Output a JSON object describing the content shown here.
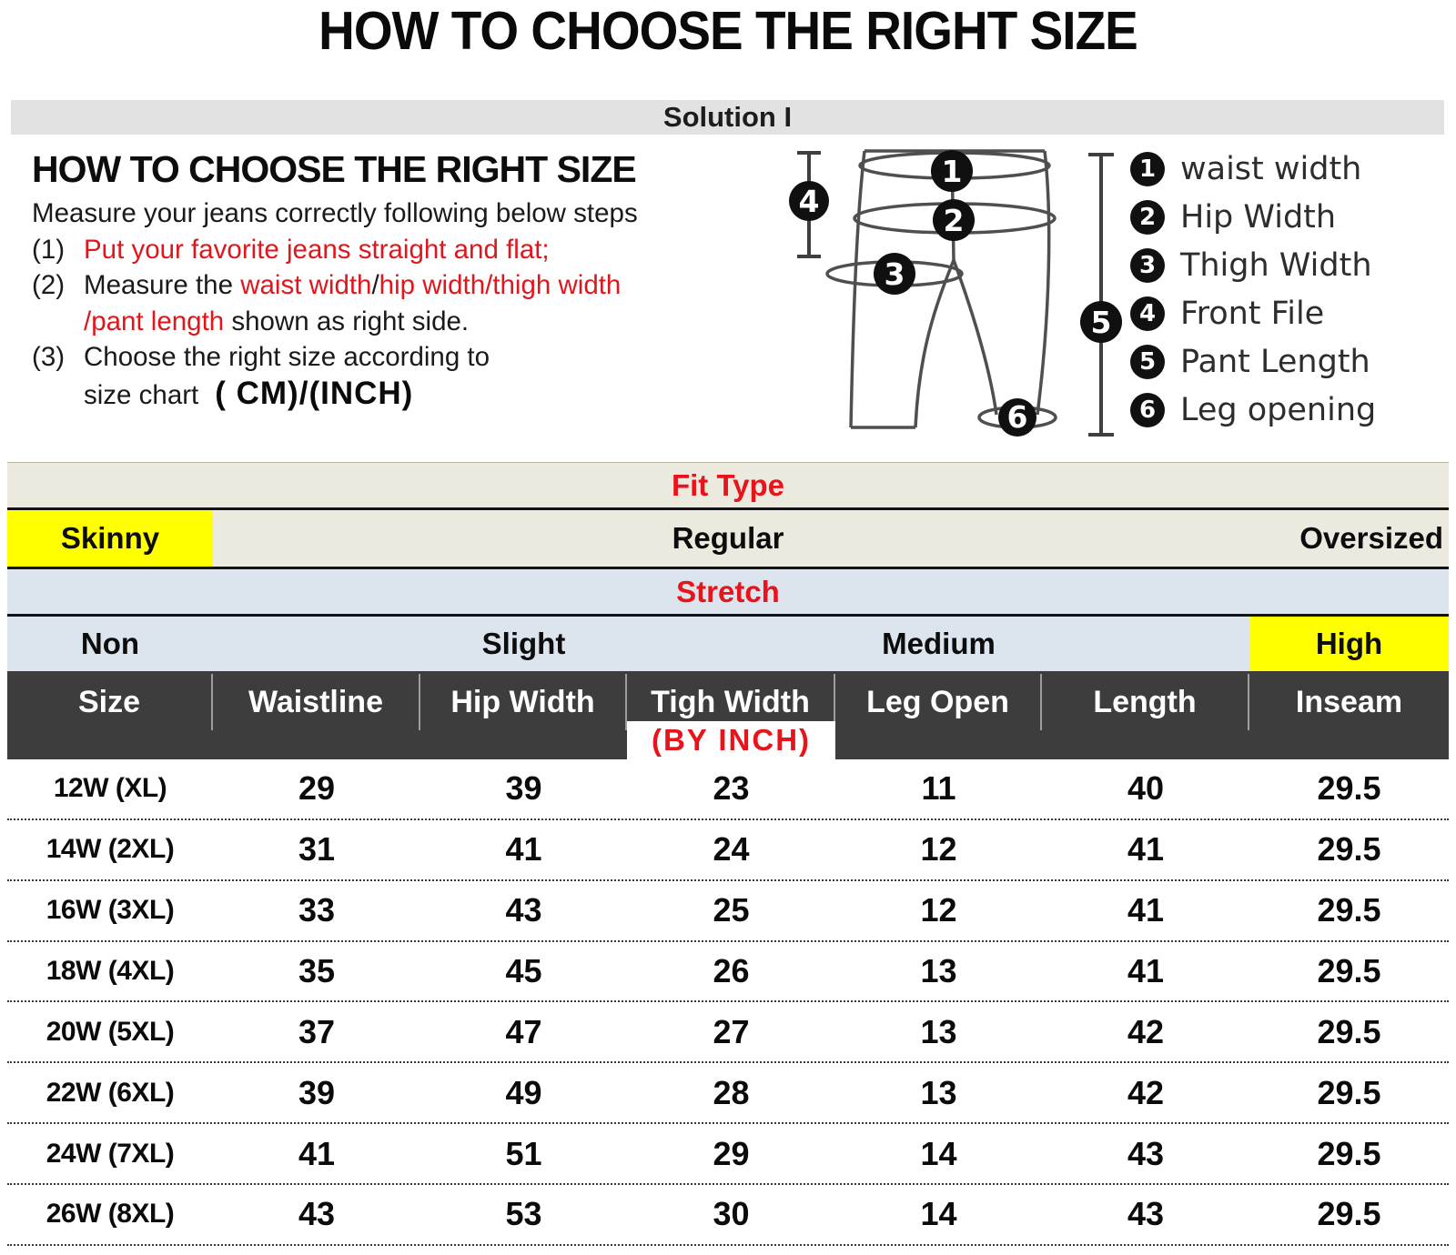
{
  "title": "HOW TO CHOOSE THE RIGHT SIZE",
  "solution_bar": "Solution I",
  "instructions": {
    "heading": "HOW TO CHOOSE THE RIGHT SIZE",
    "subheading": "Measure your jeans correctly following below steps",
    "step1_num": "(1)",
    "step1_red": "Put your favorite jeans straight and flat;",
    "step2_num": "(2)",
    "step2_black": "Measure the ",
    "step2_red1": "waist width",
    "step2_slash1": "/",
    "step2_red2": "hip width/thigh width",
    "step2b_red": "/pant length",
    "step2b_black": " shown as right side.",
    "step3_num": "(3)",
    "step3_text": "Choose the right size according to",
    "step3b_text": "size chart",
    "step3b_bold": "( CM)/(INCH)"
  },
  "diagram_legend": [
    {
      "num": "1",
      "label": "waist width"
    },
    {
      "num": "2",
      "label": "Hip Width"
    },
    {
      "num": "3",
      "label": "Thigh Width"
    },
    {
      "num": "4",
      "label": "Front File"
    },
    {
      "num": "5",
      "label": "Pant Length"
    },
    {
      "num": "6",
      "label": "Leg opening"
    }
  ],
  "fit_type": {
    "header": "Fit Type",
    "options": [
      "Skinny",
      "Regular",
      "Oversized"
    ],
    "highlighted": "Skinny"
  },
  "stretch": {
    "header": "Stretch",
    "options": [
      "Non",
      "Slight",
      "Medium",
      "High"
    ],
    "highlighted": "High"
  },
  "size_table": {
    "unit_note": "(BY INCH)",
    "columns": [
      "Size",
      "Waistline",
      "Hip Width",
      "Tigh Width",
      "Leg Open",
      "Length",
      "Inseam"
    ],
    "rows": [
      [
        "12W (XL)",
        "29",
        "39",
        "23",
        "11",
        "40",
        "29.5"
      ],
      [
        "14W (2XL)",
        "31",
        "41",
        "24",
        "12",
        "41",
        "29.5"
      ],
      [
        "16W (3XL)",
        "33",
        "43",
        "25",
        "12",
        "41",
        "29.5"
      ],
      [
        "18W (4XL)",
        "35",
        "45",
        "26",
        "13",
        "41",
        "29.5"
      ],
      [
        "20W (5XL)",
        "37",
        "47",
        "27",
        "13",
        "42",
        "29.5"
      ],
      [
        "22W (6XL)",
        "39",
        "49",
        "28",
        "13",
        "42",
        "29.5"
      ],
      [
        "24W (7XL)",
        "41",
        "51",
        "29",
        "14",
        "43",
        "29.5"
      ],
      [
        "26W (8XL)",
        "43",
        "53",
        "30",
        "14",
        "43",
        "29.5"
      ]
    ]
  },
  "colors": {
    "accent_red": "#e8141b",
    "highlight_yellow": "#ffff00",
    "band_beige": "#ece9df",
    "band_blue": "#dce4ee",
    "header_dark": "#3d3d3d",
    "solution_gray": "#e2e2e2"
  }
}
